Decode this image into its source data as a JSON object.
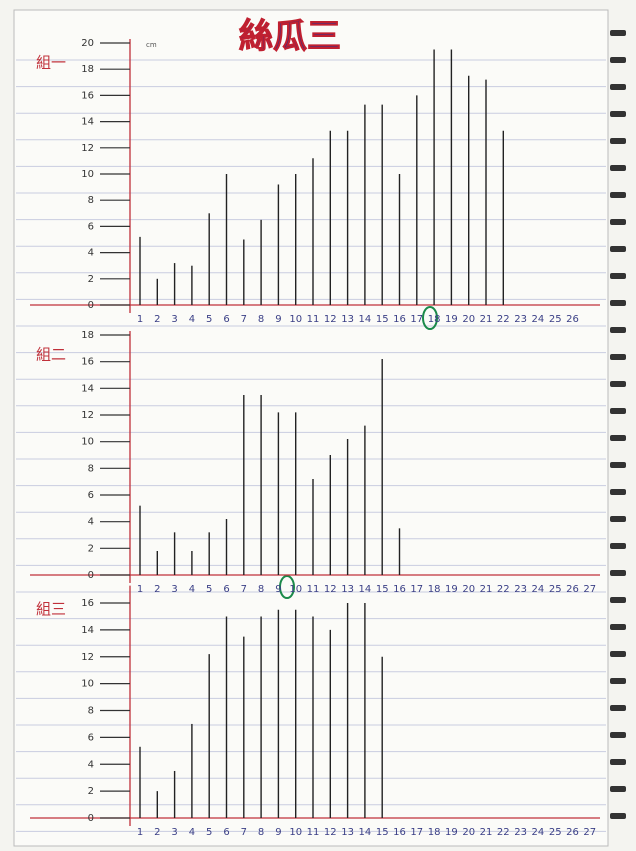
{
  "title": "絲瓜三",
  "chart_data": [
    {
      "type": "bar",
      "title": "組一",
      "ylabel": "cm",
      "color": "#222222",
      "categories": [
        "1",
        "2",
        "3",
        "4",
        "5",
        "6",
        "7",
        "8",
        "9",
        "10",
        "11",
        "12",
        "13",
        "14",
        "15",
        "16",
        "17",
        "18",
        "19",
        "20",
        "21",
        "22",
        "23",
        "24",
        "25",
        "26"
      ],
      "values": [
        5.2,
        2,
        3.2,
        3,
        7,
        10,
        5,
        6.5,
        9.2,
        10,
        11.2,
        13.3,
        13.3,
        15.3,
        15.3,
        10,
        16,
        19.5,
        19.5,
        17.5,
        17.2,
        13.3,
        null,
        null,
        null,
        null
      ],
      "ylim": [
        0,
        20
      ],
      "yticks": [
        0,
        2,
        4,
        6,
        8,
        10,
        12,
        14,
        16,
        18,
        20
      ]
    },
    {
      "type": "bar",
      "title": "組二",
      "color": "#222222",
      "categories": [
        "1",
        "2",
        "3",
        "4",
        "5",
        "6",
        "7",
        "8",
        "9",
        "10",
        "11",
        "12",
        "13",
        "14",
        "15",
        "16",
        "17",
        "18",
        "19",
        "20",
        "21",
        "22",
        "23",
        "24",
        "25",
        "26",
        "27"
      ],
      "values": [
        5.2,
        1.8,
        3.2,
        1.8,
        3.2,
        4.2,
        13.5,
        13.5,
        12.2,
        12.2,
        7.2,
        9,
        10.2,
        11.2,
        16.2,
        3.5,
        null,
        null,
        null,
        null,
        null,
        null,
        null,
        null,
        null,
        null,
        null
      ],
      "ylim": [
        0,
        18
      ],
      "yticks": [
        0,
        2,
        4,
        6,
        8,
        10,
        12,
        14,
        16,
        18
      ]
    },
    {
      "type": "bar",
      "title": "組三",
      "color": "#222222",
      "categories": [
        "1",
        "2",
        "3",
        "4",
        "5",
        "6",
        "7",
        "8",
        "9",
        "10",
        "11",
        "12",
        "13",
        "14",
        "15",
        "16",
        "17",
        "18",
        "19",
        "20",
        "21",
        "22",
        "23",
        "24",
        "25",
        "26",
        "27"
      ],
      "values": [
        5.3,
        2,
        3.5,
        7,
        12.2,
        15,
        13.5,
        15,
        15.5,
        15.5,
        15,
        14,
        16,
        16,
        12,
        null,
        null,
        null,
        null,
        null,
        null,
        null,
        null,
        null,
        null,
        null,
        null
      ],
      "ylim": [
        0,
        17
      ],
      "yticks": [
        0,
        2,
        4,
        6,
        8,
        10,
        12,
        14,
        16
      ]
    }
  ]
}
